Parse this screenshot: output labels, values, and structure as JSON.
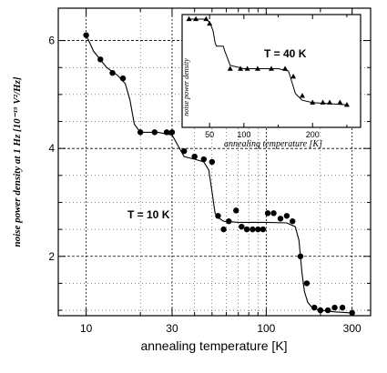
{
  "chart_data": [
    {
      "type": "scatter",
      "xscale": "log",
      "xlim": [
        7,
        380
      ],
      "ylim": [
        0.9,
        6.6
      ],
      "xlabel": "annealing temperature [K]",
      "ylabel": "noise power density at 1 Hz [10⁻¹⁹ V²/Hz]",
      "xticks": [
        10,
        30,
        100,
        300
      ],
      "xtick_labels": [
        "10",
        "30",
        "100",
        "300"
      ],
      "yticks": [
        2,
        4,
        6
      ],
      "ytick_labels": [
        "2",
        "4",
        "6"
      ],
      "annotation": "T = 10 K",
      "grid": "dotted",
      "series": [
        {
          "marker": "circle",
          "x": [
            10,
            12,
            14,
            16,
            20,
            24,
            28,
            30,
            35,
            40,
            45,
            50,
            54,
            58,
            62,
            68,
            73,
            78,
            84,
            90,
            96,
            102,
            110,
            120,
            130,
            140,
            155,
            168,
            185,
            200,
            220,
            240,
            265,
            300
          ],
          "y": [
            6.1,
            5.65,
            5.4,
            5.3,
            4.3,
            4.3,
            4.3,
            4.3,
            3.95,
            3.85,
            3.8,
            3.75,
            2.75,
            2.5,
            2.65,
            2.85,
            2.55,
            2.5,
            2.5,
            2.5,
            2.5,
            2.8,
            2.8,
            2.7,
            2.75,
            2.65,
            2.0,
            1.5,
            1.05,
            1.0,
            1.0,
            1.05,
            1.05,
            0.95
          ],
          "fit_x": [
            10,
            11,
            13,
            15,
            16.5,
            17.5,
            18.5,
            20,
            25,
            30,
            35,
            40,
            45,
            48,
            50,
            52,
            54,
            58,
            70,
            100,
            130,
            145,
            152,
            158,
            163,
            170,
            180,
            200,
            240,
            300
          ],
          "fit_y": [
            6.1,
            5.8,
            5.5,
            5.35,
            5.2,
            4.9,
            4.45,
            4.3,
            4.3,
            4.25,
            3.85,
            3.8,
            3.75,
            3.6,
            3.2,
            2.8,
            2.72,
            2.65,
            2.63,
            2.63,
            2.62,
            2.55,
            2.3,
            1.7,
            1.35,
            1.15,
            1.05,
            1.0,
            0.97,
            0.95
          ]
        }
      ]
    },
    {
      "type": "scatter",
      "xlim": [
        10,
        270
      ],
      "ylim": [
        0,
        1
      ],
      "xlabel": "annealing temperature [K]",
      "ylabel": "noise power density",
      "xticks": [
        50,
        100,
        200
      ],
      "xtick_labels": [
        "50",
        "100",
        "200"
      ],
      "annotation": "T = 40 K",
      "series": [
        {
          "marker": "triangle",
          "x": [
            20,
            30,
            45,
            50,
            80,
            95,
            105,
            120,
            140,
            160,
            172,
            185,
            200,
            215,
            225,
            240,
            250
          ],
          "y": [
            0.96,
            0.96,
            0.96,
            0.92,
            0.52,
            0.52,
            0.52,
            0.52,
            0.52,
            0.52,
            0.45,
            0.28,
            0.22,
            0.22,
            0.22,
            0.22,
            0.2
          ],
          "fit_x": [
            20,
            45,
            50,
            55,
            58,
            60,
            70,
            72,
            80,
            100,
            150,
            165,
            170,
            175,
            185,
            200,
            250
          ],
          "fit_y": [
            0.96,
            0.96,
            0.93,
            0.86,
            0.75,
            0.72,
            0.72,
            0.68,
            0.55,
            0.52,
            0.52,
            0.5,
            0.4,
            0.3,
            0.24,
            0.22,
            0.2
          ]
        }
      ]
    }
  ]
}
